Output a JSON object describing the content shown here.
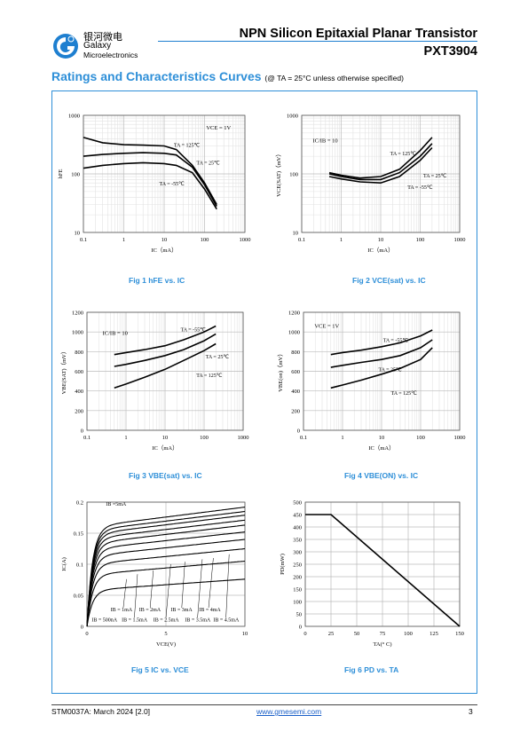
{
  "header": {
    "company_cn": "银河微电",
    "company_line1": "Galaxy",
    "company_line2": "Microelectronics",
    "title": "NPN Silicon Epitaxial Planar Transistor",
    "part": "PXT3904",
    "accent": "#1e7fd0"
  },
  "section": {
    "title": "Ratings and Characteristics Curves",
    "condition": "(@ TA = 25°C unless otherwise specified)"
  },
  "figures": {
    "fig1": "Fig 1 hFE vs. IC",
    "fig2": "Fig 2 VCE(sat) vs. IC",
    "fig3": "Fig 3 VBE(sat) vs. IC",
    "fig4": "Fig 4 VBE(ON) vs. IC",
    "fig5": "Fig 5 IC vs. VCE",
    "fig6": "Fig 6 PD vs. TA"
  },
  "footer": {
    "doc": "STM0037A: March 2024 [2.0]",
    "url": "www.gmesemi.com",
    "page": "3"
  },
  "chart_data": [
    {
      "id": "fig1",
      "type": "line",
      "xscale": "log",
      "yscale": "log",
      "xlim": [
        0.1,
        1000
      ],
      "ylim": [
        10,
        1000
      ],
      "xticks": [
        "0.1",
        "1",
        "10",
        "100",
        "1000"
      ],
      "yticks": [
        "10",
        "100",
        "1000"
      ],
      "xlabel": "IC（mA）",
      "ylabel": "hFE",
      "annotations": [
        "VCE = 1V"
      ],
      "series": [
        {
          "name": "TA = 125℃",
          "x": [
            0.1,
            0.3,
            1,
            3,
            10,
            20,
            50,
            100,
            200
          ],
          "y": [
            420,
            340,
            315,
            310,
            300,
            260,
            140,
            70,
            30
          ]
        },
        {
          "name": "TA = 25℃",
          "x": [
            0.1,
            0.3,
            1,
            3,
            10,
            20,
            50,
            100,
            200
          ],
          "y": [
            200,
            215,
            225,
            230,
            225,
            210,
            130,
            65,
            28
          ]
        },
        {
          "name": "TA = -55℃",
          "x": [
            0.1,
            0.3,
            1,
            3,
            10,
            20,
            50,
            100,
            200
          ],
          "y": [
            125,
            140,
            150,
            155,
            150,
            140,
            105,
            55,
            25
          ]
        }
      ]
    },
    {
      "id": "fig2",
      "type": "line",
      "xscale": "log",
      "yscale": "log",
      "xlim": [
        0.1,
        1000
      ],
      "ylim": [
        10,
        1000
      ],
      "xticks": [
        "0.1",
        "1",
        "10",
        "100",
        "1000"
      ],
      "yticks": [
        "10",
        "100",
        "1000"
      ],
      "xlabel": "IC（mA）",
      "ylabel": "VCE(SAT)（mV）",
      "annotations": [
        "IC/IB = 10"
      ],
      "series": [
        {
          "name": "TA = 125℃",
          "x": [
            0.5,
            1,
            3,
            10,
            30,
            100,
            200
          ],
          "y": [
            105,
            95,
            85,
            90,
            120,
            250,
            420
          ]
        },
        {
          "name": "TA = 25℃",
          "x": [
            0.5,
            1,
            3,
            10,
            30,
            100,
            200
          ],
          "y": [
            100,
            90,
            80,
            80,
            105,
            200,
            330
          ]
        },
        {
          "name": "TA = -55℃",
          "x": [
            0.5,
            1,
            3,
            10,
            30,
            100,
            200
          ],
          "y": [
            90,
            82,
            73,
            70,
            90,
            170,
            280
          ]
        }
      ]
    },
    {
      "id": "fig3",
      "type": "line",
      "xscale": "log",
      "yscale": "linear",
      "xlim": [
        0.1,
        1000
      ],
      "ylim": [
        0,
        1200
      ],
      "xticks": [
        "0.1",
        "1",
        "10",
        "100",
        "1000"
      ],
      "yticks": [
        "0",
        "200",
        "400",
        "600",
        "800",
        "1000",
        "1200"
      ],
      "xlabel": "IC（mA）",
      "ylabel": "VBE(SAT)（mV）",
      "annotations": [
        "IC/IB = 10"
      ],
      "series": [
        {
          "name": "TA = -55℃",
          "x": [
            0.5,
            1,
            3,
            10,
            30,
            100,
            200
          ],
          "y": [
            770,
            790,
            820,
            860,
            920,
            1000,
            1060
          ]
        },
        {
          "name": "TA = 25℃",
          "x": [
            0.5,
            1,
            3,
            10,
            30,
            100,
            200
          ],
          "y": [
            650,
            670,
            710,
            760,
            820,
            910,
            980
          ]
        },
        {
          "name": "TA = 125℃",
          "x": [
            0.5,
            1,
            3,
            10,
            30,
            100,
            200
          ],
          "y": [
            430,
            470,
            540,
            620,
            710,
            810,
            880
          ]
        }
      ]
    },
    {
      "id": "fig4",
      "type": "line",
      "xscale": "log",
      "yscale": "linear",
      "xlim": [
        0.1,
        1000
      ],
      "ylim": [
        0,
        1200
      ],
      "xticks": [
        "0.1",
        "1",
        "10",
        "100",
        "1000"
      ],
      "yticks": [
        "0",
        "200",
        "400",
        "600",
        "800",
        "1000",
        "1200"
      ],
      "xlabel": "IC（mA）",
      "ylabel": "VBE(on)（mV）",
      "annotations": [
        "VCE = 1V"
      ],
      "series": [
        {
          "name": "TA = -55℃",
          "x": [
            0.5,
            1,
            3,
            10,
            30,
            100,
            200
          ],
          "y": [
            770,
            790,
            815,
            850,
            890,
            960,
            1020
          ]
        },
        {
          "name": "TA = 25℃",
          "x": [
            0.5,
            1,
            3,
            10,
            30,
            100,
            200
          ],
          "y": [
            640,
            660,
            690,
            720,
            760,
            840,
            920
          ]
        },
        {
          "name": "TA = 125℃",
          "x": [
            0.5,
            1,
            3,
            10,
            30,
            100,
            200
          ],
          "y": [
            430,
            460,
            510,
            570,
            630,
            720,
            840
          ]
        }
      ]
    },
    {
      "id": "fig5",
      "type": "line",
      "xscale": "linear",
      "yscale": "linear",
      "xlim": [
        0,
        10
      ],
      "ylim": [
        0,
        0.2
      ],
      "xticks": [
        "0",
        "5",
        "10"
      ],
      "yticks": [
        "0",
        "0.05",
        "0.1",
        "0.15",
        "0.2"
      ],
      "xlabel": "VCE(V)",
      "ylabel": "IC(A)",
      "labels": [
        "IB =5mA",
        "IB = 1mA",
        "IB = 2mA",
        "IB = 3mA",
        "IB = 4mA",
        "IB = 500nA",
        "IB = 1.5mA",
        "IB = 2.5mA",
        "IB = 3.5mA",
        "IB = 4.5mA"
      ],
      "series": [
        {
          "name": "IB = 500nA",
          "sat": 0.058,
          "slope": 0.0018
        },
        {
          "name": "IB = 1mA",
          "sat": 0.083,
          "slope": 0.0022
        },
        {
          "name": "IB = 1.5mA",
          "sat": 0.1,
          "slope": 0.0025
        },
        {
          "name": "IB = 2mA",
          "sat": 0.113,
          "slope": 0.0027
        },
        {
          "name": "IB = 2.5mA",
          "sat": 0.124,
          "slope": 0.0028
        },
        {
          "name": "IB = 3mA",
          "sat": 0.133,
          "slope": 0.003
        },
        {
          "name": "IB = 3.5mA",
          "sat": 0.141,
          "slope": 0.003
        },
        {
          "name": "IB = 4mA",
          "sat": 0.148,
          "slope": 0.0031
        },
        {
          "name": "IB = 4.5mA",
          "sat": 0.154,
          "slope": 0.0031
        },
        {
          "name": "IB =5mA",
          "sat": 0.16,
          "slope": 0.0032
        }
      ]
    },
    {
      "id": "fig6",
      "type": "line",
      "xscale": "linear",
      "yscale": "linear",
      "xlim": [
        0,
        150
      ],
      "ylim": [
        0,
        500
      ],
      "xticks": [
        "0",
        "25",
        "50",
        "75",
        "100",
        "125",
        "150"
      ],
      "yticks": [
        "0",
        "50",
        "100",
        "150",
        "200",
        "250",
        "300",
        "350",
        "400",
        "450",
        "500"
      ],
      "xlabel": "TA(° C)",
      "ylabel": "PD(mW)",
      "series": [
        {
          "name": "PD",
          "x": [
            0,
            25,
            150
          ],
          "y": [
            450,
            450,
            0
          ]
        }
      ]
    }
  ]
}
